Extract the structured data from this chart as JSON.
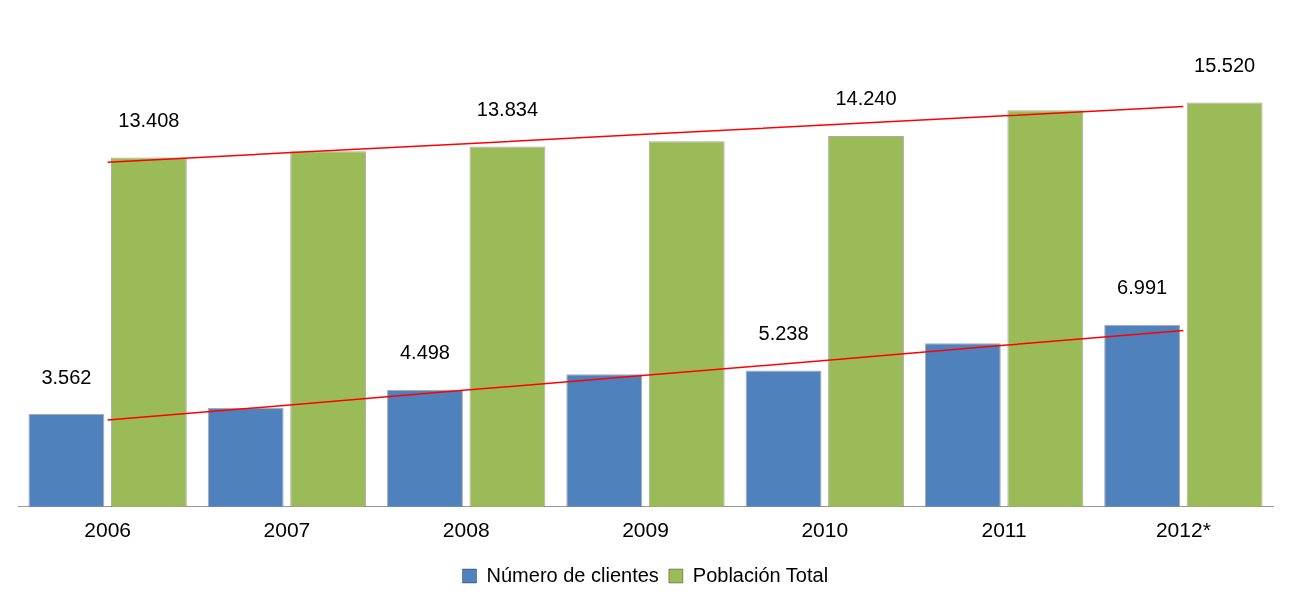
{
  "chart_data": {
    "type": "bar",
    "categories": [
      "2006",
      "2007",
      "2008",
      "2009",
      "2010",
      "2011",
      "2012*"
    ],
    "series": [
      {
        "name": "Número de clientes",
        "color": "#4f81bd",
        "values": [
          3562,
          3790,
          4498,
          5090,
          5238,
          6280,
          6991
        ],
        "value_labels": [
          "3.562",
          null,
          "4.498",
          null,
          "5.238",
          null,
          "6.991"
        ]
      },
      {
        "name": "Población Total",
        "color": "#9bbb59",
        "values": [
          13408,
          13650,
          13834,
          14040,
          14240,
          15230,
          15520
        ],
        "value_labels": [
          "13.408",
          null,
          "13.834",
          null,
          "14.240",
          null,
          "15.520"
        ]
      },
      {
        "type": "line",
        "color": "#ff0000",
        "values": [
          13230,
          13590,
          13940,
          14300,
          14660,
          15010,
          15370
        ]
      },
      {
        "type": "line",
        "color": "#ff0000",
        "values": [
          3330,
          3900,
          4480,
          5050,
          5620,
          6200,
          6770
        ]
      }
    ],
    "legend": "bottom",
    "grid": false,
    "marker": "none",
    "tick_labels": "x"
  }
}
